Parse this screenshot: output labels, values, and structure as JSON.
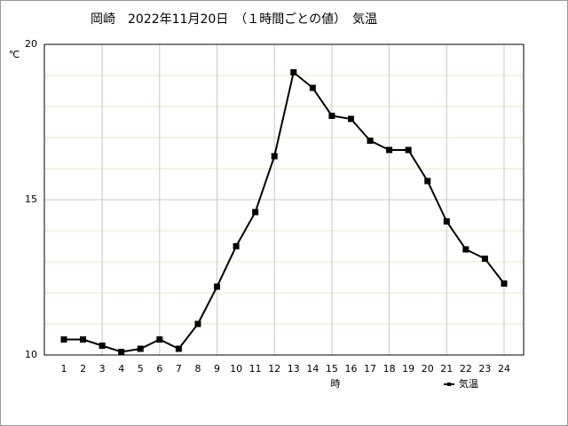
{
  "chart_data": {
    "type": "line",
    "title": "岡崎　2022年11月20日　（１時間ごとの値）　気温",
    "y_label": "℃",
    "x_label": "時",
    "categories": [
      "1",
      "2",
      "3",
      "4",
      "5",
      "6",
      "7",
      "8",
      "9",
      "10",
      "11",
      "12",
      "13",
      "14",
      "15",
      "16",
      "17",
      "18",
      "19",
      "20",
      "21",
      "22",
      "23",
      "24"
    ],
    "series": [
      {
        "name": "気温",
        "color": "#000000",
        "values": [
          10.5,
          10.5,
          10.3,
          10.1,
          10.2,
          10.5,
          10.2,
          11.0,
          12.2,
          13.5,
          14.6,
          16.4,
          19.1,
          18.6,
          17.7,
          17.6,
          16.9,
          16.6,
          16.6,
          15.6,
          14.3,
          13.4,
          13.1,
          12.3
        ]
      }
    ],
    "ylim": [
      10,
      20
    ],
    "yticks": [
      10,
      15,
      20
    ],
    "minor_yticks": [
      11,
      12,
      13,
      14,
      16,
      17,
      18,
      19
    ],
    "grid": true,
    "legend": "bottom-right"
  }
}
